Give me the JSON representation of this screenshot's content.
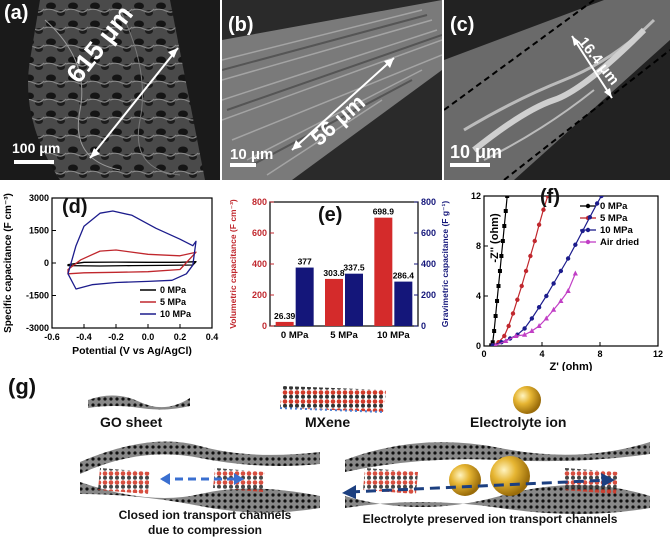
{
  "panels": {
    "a": {
      "label": "(a)",
      "scale": "100 μm",
      "thickness": "615 μm"
    },
    "b": {
      "label": "(b)",
      "scale": "10 μm",
      "thickness": "56 μm"
    },
    "c": {
      "label": "(c)",
      "scale": "10 μm",
      "thickness": "16.4 μm"
    },
    "d": {
      "label": "(d)"
    },
    "e": {
      "label": "(e)"
    },
    "f": {
      "label": "(f)"
    },
    "g": {
      "label": "(g)"
    }
  },
  "chart_data": [
    {
      "type": "line",
      "panel": "d",
      "xlabel": "Potential (V vs Ag/AgCl)",
      "ylabel": "Specific capacitance (F cm⁻³)",
      "xlim": [
        -0.6,
        0.4
      ],
      "ylim": [
        -3000,
        3000
      ],
      "xticks": [
        "-0.6",
        "-0.4",
        "-0.2",
        "0.0",
        "0.2",
        "0.4"
      ],
      "yticks": [
        "3000",
        "1500",
        "0",
        "-1500",
        "-3000"
      ],
      "legend_position": "bottom-right",
      "series": [
        {
          "name": "0 MPa",
          "color": "#000000",
          "upper": [
            [
              -0.5,
              -80
            ],
            [
              -0.4,
              30
            ],
            [
              -0.2,
              40
            ],
            [
              0,
              30
            ],
            [
              0.2,
              30
            ],
            [
              0.3,
              60
            ]
          ],
          "lower": [
            [
              -0.5,
              -120
            ],
            [
              -0.3,
              -140
            ],
            [
              -0.1,
              -120
            ],
            [
              0.1,
              -110
            ],
            [
              0.28,
              -90
            ],
            [
              0.3,
              60
            ]
          ]
        },
        {
          "name": "5 MPa",
          "color": "#c0272d",
          "upper": [
            [
              -0.5,
              -300
            ],
            [
              -0.42,
              150
            ],
            [
              -0.3,
              550
            ],
            [
              -0.2,
              600
            ],
            [
              0,
              400
            ],
            [
              0.2,
              330
            ],
            [
              0.3,
              500
            ]
          ],
          "lower": [
            [
              -0.5,
              -500
            ],
            [
              -0.4,
              -450
            ],
            [
              -0.2,
              -430
            ],
            [
              0,
              -400
            ],
            [
              0.2,
              -300
            ],
            [
              0.3,
              500
            ]
          ]
        },
        {
          "name": "10 MPa",
          "color": "#1c1c8c",
          "upper": [
            [
              -0.5,
              -500
            ],
            [
              -0.45,
              800
            ],
            [
              -0.4,
              1700
            ],
            [
              -0.3,
              2300
            ],
            [
              -0.22,
              2400
            ],
            [
              -0.1,
              2200
            ],
            [
              0.05,
              1600
            ],
            [
              0.2,
              1100
            ],
            [
              0.28,
              800
            ],
            [
              0.3,
              1000
            ]
          ],
          "lower": [
            [
              -0.5,
              -500
            ],
            [
              -0.45,
              -1200
            ],
            [
              -0.35,
              -1000
            ],
            [
              -0.2,
              -900
            ],
            [
              0,
              -850
            ],
            [
              0.15,
              -800
            ],
            [
              0.24,
              -500
            ],
            [
              0.28,
              -100
            ],
            [
              0.3,
              1000
            ]
          ]
        }
      ]
    },
    {
      "type": "bar",
      "panel": "e",
      "categories": [
        "0 MPa",
        "5 MPa",
        "10 MPa"
      ],
      "ylabel": "Volumetric capacitance (F cm⁻³)",
      "y2label": "Gravimetric capacitance (F g⁻¹)",
      "ylim": [
        0,
        800
      ],
      "y2lim": [
        0,
        800
      ],
      "yticks": [
        "0",
        "200",
        "400",
        "600",
        "800"
      ],
      "series": [
        {
          "name": "Volumetric",
          "axis": "left",
          "color": "#d42b2b",
          "values": [
            26.39,
            303.8,
            698.9
          ],
          "labels": [
            "26.39",
            "303.8",
            "698.9"
          ]
        },
        {
          "name": "Gravimetric",
          "axis": "right",
          "color": "#14167a",
          "values": [
            377,
            337.5,
            286.4
          ],
          "labels": [
            "377",
            "337.5",
            "286.4"
          ]
        }
      ]
    },
    {
      "type": "scatter",
      "panel": "f",
      "xlabel": "Z' (ohm)",
      "ylabel": "-Z'' (ohm)",
      "xlim": [
        0,
        12
      ],
      "ylim": [
        0,
        12
      ],
      "xticks": [
        "0",
        "4",
        "8",
        "12"
      ],
      "yticks": [
        "0",
        "4",
        "8",
        "12"
      ],
      "legend_position": "top-right",
      "series": [
        {
          "name": "0 MPa",
          "color": "#000000",
          "marker": "square",
          "points": [
            [
              0.5,
              0.05
            ],
            [
              0.6,
              0.3
            ],
            [
              0.7,
              1.2
            ],
            [
              0.8,
              2.4
            ],
            [
              0.9,
              3.6
            ],
            [
              1.0,
              4.8
            ],
            [
              1.1,
              6.0
            ],
            [
              1.2,
              7.2
            ],
            [
              1.3,
              8.4
            ],
            [
              1.4,
              9.6
            ],
            [
              1.5,
              10.8
            ],
            [
              1.6,
              12.0
            ]
          ]
        },
        {
          "name": "5 MPa",
          "color": "#c0272d",
          "marker": "circle",
          "points": [
            [
              0.6,
              0.05
            ],
            [
              1.0,
              0.3
            ],
            [
              1.4,
              0.8
            ],
            [
              1.7,
              1.6
            ],
            [
              2.0,
              2.6
            ],
            [
              2.3,
              3.7
            ],
            [
              2.6,
              4.8
            ],
            [
              2.9,
              6.0
            ],
            [
              3.2,
              7.2
            ],
            [
              3.5,
              8.4
            ],
            [
              3.8,
              9.7
            ],
            [
              4.1,
              10.9
            ],
            [
              4.4,
              12.0
            ]
          ]
        },
        {
          "name": "10 MPa",
          "color": "#1c1c8c",
          "marker": "circle",
          "points": [
            [
              0.6,
              0.05
            ],
            [
              1.2,
              0.3
            ],
            [
              1.8,
              0.6
            ],
            [
              2.3,
              0.9
            ],
            [
              2.8,
              1.4
            ],
            [
              3.3,
              2.2
            ],
            [
              3.8,
              3.1
            ],
            [
              4.3,
              4.0
            ],
            [
              4.8,
              5.0
            ],
            [
              5.3,
              6.0
            ],
            [
              5.8,
              7.0
            ],
            [
              6.3,
              8.1
            ],
            [
              6.8,
              9.2
            ],
            [
              7.3,
              10.3
            ],
            [
              7.8,
              11.4
            ],
            [
              8.1,
              12.0
            ]
          ]
        },
        {
          "name": "Air dried",
          "color": "#c13fc5",
          "marker": "triangle",
          "points": [
            [
              0.8,
              0.05
            ],
            [
              1.5,
              0.4
            ],
            [
              2.2,
              0.8
            ],
            [
              2.8,
              0.9
            ],
            [
              3.3,
              1.2
            ],
            [
              3.8,
              1.6
            ],
            [
              4.3,
              2.2
            ],
            [
              4.8,
              2.9
            ],
            [
              5.3,
              3.6
            ],
            [
              5.8,
              4.4
            ],
            [
              6.3,
              5.8
            ]
          ]
        }
      ]
    }
  ],
  "schematic": {
    "go_sheet": "GO sheet",
    "mxene": "MXene",
    "electrolyte_ion": "Electrolyte ion",
    "closed_caption": "Closed ion transport channels due to compression",
    "preserved_caption": "Electrolyte preserved ion transport channels"
  }
}
